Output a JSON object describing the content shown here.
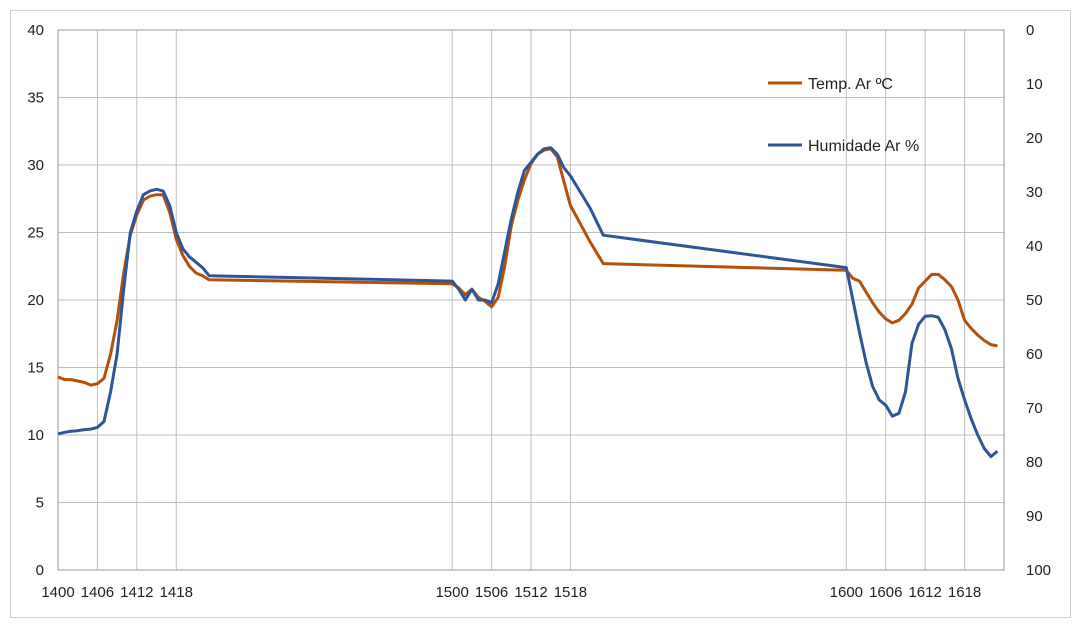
{
  "chart_data": {
    "type": "line",
    "title": "",
    "xlabel": "",
    "ylabel": "",
    "y2label": "",
    "grid": true,
    "legend_position": "top-right",
    "x_range": [
      1400,
      1624
    ],
    "x_tick_labels": [
      "1400",
      "1406",
      "1412",
      "1418",
      "1500",
      "1506",
      "1512",
      "1518",
      "1600",
      "1606",
      "1612",
      "1618"
    ],
    "ylim_left": [
      0,
      40
    ],
    "y_left_ticks": [
      0,
      5,
      10,
      15,
      20,
      25,
      30,
      35,
      40
    ],
    "ylim_right": [
      0,
      100
    ],
    "y_right_inverted": true,
    "y_right_ticks": [
      0,
      10,
      20,
      30,
      40,
      50,
      60,
      70,
      80,
      90,
      100
    ],
    "series": [
      {
        "name": "Temp. Ar ºC",
        "axis": "left",
        "color": "#b5500b",
        "points": [
          [
            1400,
            14.3
          ],
          [
            1401,
            14.1
          ],
          [
            1402,
            14.1
          ],
          [
            1403,
            14.0
          ],
          [
            1404,
            13.9
          ],
          [
            1405,
            13.7
          ],
          [
            1406,
            13.8
          ],
          [
            1407,
            14.2
          ],
          [
            1408,
            16.0
          ],
          [
            1409,
            18.5
          ],
          [
            1410,
            22.0
          ],
          [
            1411,
            24.8
          ],
          [
            1412,
            26.3
          ],
          [
            1413,
            27.4
          ],
          [
            1414,
            27.7
          ],
          [
            1415,
            27.8
          ],
          [
            1416,
            27.8
          ],
          [
            1417,
            26.5
          ],
          [
            1418,
            24.5
          ],
          [
            1419,
            23.3
          ],
          [
            1420,
            22.5
          ],
          [
            1421,
            22.0
          ],
          [
            1422,
            21.8
          ],
          [
            1423,
            21.5
          ],
          [
            1500,
            21.2
          ],
          [
            1501,
            20.9
          ],
          [
            1502,
            20.4
          ],
          [
            1503,
            20.8
          ],
          [
            1504,
            20.2
          ],
          [
            1505,
            19.9
          ],
          [
            1506,
            19.5
          ],
          [
            1507,
            20.2
          ],
          [
            1508,
            22.5
          ],
          [
            1509,
            25.5
          ],
          [
            1510,
            27.4
          ],
          [
            1511,
            28.9
          ],
          [
            1512,
            30.1
          ],
          [
            1513,
            30.8
          ],
          [
            1514,
            31.1
          ],
          [
            1515,
            31.2
          ],
          [
            1516,
            30.6
          ],
          [
            1517,
            28.8
          ],
          [
            1518,
            27.0
          ],
          [
            1519,
            26.1
          ],
          [
            1520,
            25.2
          ],
          [
            1521,
            24.3
          ],
          [
            1522,
            23.5
          ],
          [
            1523,
            22.7
          ],
          [
            1600,
            22.2
          ],
          [
            1601,
            21.6
          ],
          [
            1602,
            21.4
          ],
          [
            1603,
            20.6
          ],
          [
            1604,
            19.8
          ],
          [
            1605,
            19.1
          ],
          [
            1606,
            18.6
          ],
          [
            1607,
            18.3
          ],
          [
            1608,
            18.5
          ],
          [
            1609,
            19.0
          ],
          [
            1610,
            19.7
          ],
          [
            1611,
            20.9
          ],
          [
            1612,
            21.4
          ],
          [
            1613,
            21.9
          ],
          [
            1614,
            21.9
          ],
          [
            1615,
            21.5
          ],
          [
            1616,
            21.0
          ],
          [
            1617,
            20.0
          ],
          [
            1618,
            18.5
          ],
          [
            1619,
            17.9
          ],
          [
            1620,
            17.4
          ],
          [
            1621,
            17.0
          ],
          [
            1622,
            16.7
          ],
          [
            1623,
            16.6
          ]
        ]
      },
      {
        "name": "Humidade Ar %",
        "axis": "right",
        "color": "#2e5597",
        "points": [
          [
            1400,
            74.8
          ],
          [
            1401,
            74.5
          ],
          [
            1402,
            74.3
          ],
          [
            1403,
            74.2
          ],
          [
            1404,
            74.0
          ],
          [
            1405,
            73.9
          ],
          [
            1406,
            73.6
          ],
          [
            1407,
            72.5
          ],
          [
            1408,
            67.0
          ],
          [
            1409,
            60.0
          ],
          [
            1410,
            48.0
          ],
          [
            1411,
            37.5
          ],
          [
            1412,
            33.5
          ],
          [
            1413,
            30.5
          ],
          [
            1414,
            29.8
          ],
          [
            1415,
            29.5
          ],
          [
            1416,
            29.8
          ],
          [
            1417,
            32.5
          ],
          [
            1418,
            37.5
          ],
          [
            1419,
            40.5
          ],
          [
            1420,
            42.0
          ],
          [
            1421,
            43.0
          ],
          [
            1422,
            44.0
          ],
          [
            1423,
            45.5
          ],
          [
            1500,
            46.5
          ],
          [
            1501,
            48.0
          ],
          [
            1502,
            50.0
          ],
          [
            1503,
            48.0
          ],
          [
            1504,
            50.0
          ],
          [
            1505,
            50.0
          ],
          [
            1506,
            50.5
          ],
          [
            1507,
            47.0
          ],
          [
            1508,
            41.0
          ],
          [
            1509,
            35.0
          ],
          [
            1510,
            30.0
          ],
          [
            1511,
            26.0
          ],
          [
            1512,
            24.5
          ],
          [
            1513,
            23.0
          ],
          [
            1514,
            22.0
          ],
          [
            1515,
            21.8
          ],
          [
            1516,
            23.0
          ],
          [
            1517,
            25.5
          ],
          [
            1518,
            27.0
          ],
          [
            1519,
            29.0
          ],
          [
            1520,
            31.0
          ],
          [
            1521,
            33.0
          ],
          [
            1522,
            35.5
          ],
          [
            1523,
            38.0
          ],
          [
            1600,
            44.0
          ],
          [
            1601,
            50.0
          ],
          [
            1602,
            56.0
          ],
          [
            1603,
            61.5
          ],
          [
            1604,
            66.0
          ],
          [
            1605,
            68.5
          ],
          [
            1606,
            69.5
          ],
          [
            1607,
            71.5
          ],
          [
            1608,
            71.0
          ],
          [
            1609,
            67.0
          ],
          [
            1610,
            58.0
          ],
          [
            1611,
            54.5
          ],
          [
            1612,
            53.0
          ],
          [
            1613,
            52.9
          ],
          [
            1614,
            53.2
          ],
          [
            1615,
            55.5
          ],
          [
            1616,
            59.0
          ],
          [
            1617,
            64.5
          ],
          [
            1618,
            68.5
          ],
          [
            1619,
            72.0
          ],
          [
            1620,
            75.0
          ],
          [
            1621,
            77.5
          ],
          [
            1622,
            79.0
          ],
          [
            1623,
            78.0
          ]
        ]
      }
    ]
  }
}
